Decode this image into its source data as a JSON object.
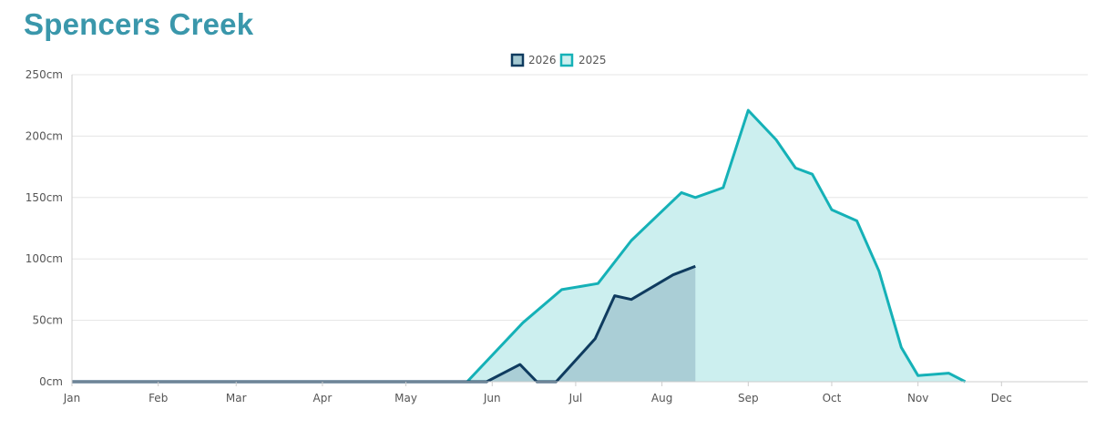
{
  "title": "Spencers Creek",
  "colors": {
    "title": "#3a97ab",
    "series_2026_line": "#0f3b5f",
    "series_2026_fill": "#a3c8d1",
    "series_2025_line": "#15b1b7",
    "series_2025_fill": "#ccefef",
    "grid": "#e5e5e5",
    "axis": "#cccccc"
  },
  "chart_data": {
    "type": "area",
    "title": "Spencers Creek",
    "xlabel": "",
    "ylabel": "",
    "x_domain_days": [
      0,
      365
    ],
    "ylim": [
      0,
      250
    ],
    "y_ticks": [
      0,
      50,
      100,
      150,
      200,
      250
    ],
    "y_tick_labels": [
      "0cm",
      "50cm",
      "100cm",
      "150cm",
      "200cm",
      "250cm"
    ],
    "month_labels": [
      "Jan",
      "Feb",
      "Mar",
      "Apr",
      "May",
      "Jun",
      "Jul",
      "Aug",
      "Sep",
      "Oct",
      "Nov",
      "Dec"
    ],
    "month_days": [
      0,
      31,
      59,
      90,
      120,
      151,
      181,
      212,
      243,
      273,
      304,
      334
    ],
    "grid": true,
    "legend_position": "top-center",
    "series": [
      {
        "name": "2026",
        "x_days": [
          0,
          120,
          149,
          161,
          167,
          174,
          188,
          195,
          201,
          216,
          224
        ],
        "values": [
          0,
          0,
          0,
          14,
          0,
          0,
          35,
          70,
          67,
          87,
          94
        ]
      },
      {
        "name": "2025",
        "x_days": [
          0,
          142,
          162,
          176,
          189,
          201,
          219,
          224,
          234,
          243,
          253,
          260,
          266,
          273,
          282,
          290,
          298,
          304,
          315,
          321
        ],
        "values": [
          0,
          0,
          48,
          75,
          80,
          115,
          154,
          150,
          158,
          221,
          197,
          174,
          169,
          140,
          131,
          90,
          28,
          5,
          7,
          0
        ]
      }
    ]
  }
}
